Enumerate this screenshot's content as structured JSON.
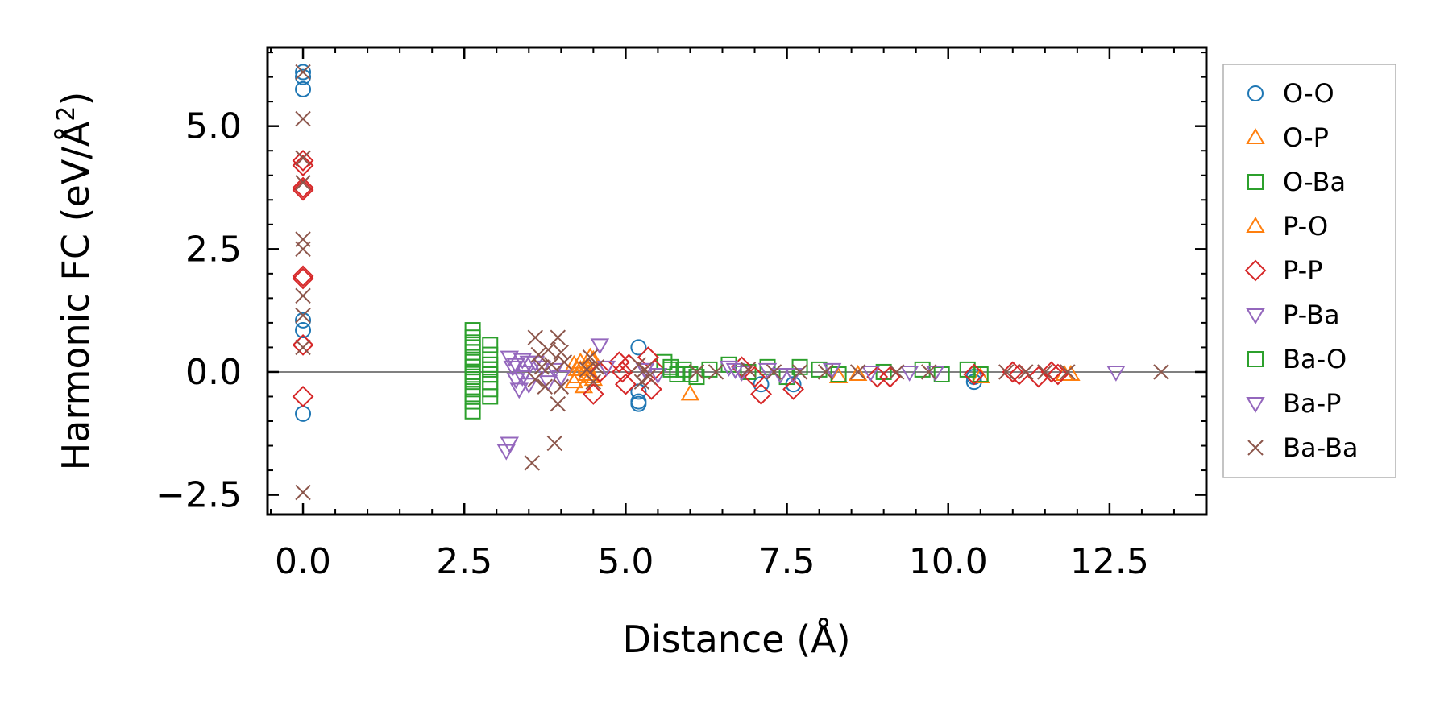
{
  "chart_data": {
    "type": "scatter",
    "xlabel": "Distance (Å)",
    "ylabel_main": "Harmonic FC (eV/Å",
    "ylabel_sup": "2",
    "ylabel_close": ")",
    "xlim": [
      -0.55,
      14.0
    ],
    "ylim": [
      -2.9,
      6.6
    ],
    "x_ticks": [
      0.0,
      2.5,
      5.0,
      7.5,
      10.0,
      12.5
    ],
    "x_tick_labels": [
      "0.0",
      "2.5",
      "5.0",
      "7.5",
      "10.0",
      "12.5"
    ],
    "y_ticks": [
      -2.5,
      0.0,
      2.5,
      5.0
    ],
    "y_tick_labels": [
      "−2.5",
      "0.0",
      "2.5",
      "5.0"
    ],
    "zero_line": 0.0,
    "legend_position": "right-outside",
    "series": [
      {
        "name": "O-O",
        "marker": "circle",
        "color": "#1f77b4",
        "x": [
          0,
          0,
          0,
          0,
          0,
          0,
          5.2,
          5.2,
          5.2,
          5.2,
          7.1,
          7.6,
          10.4,
          10.4
        ],
        "y": [
          6.1,
          6.0,
          5.75,
          1.05,
          0.85,
          -0.85,
          0.5,
          -0.6,
          -0.65,
          -0.4,
          -0.25,
          -0.25,
          -0.2,
          -0.1
        ]
      },
      {
        "name": "O-P",
        "marker": "triangle-up",
        "color": "#ff7f0e",
        "x": [
          4.2,
          4.25,
          4.3,
          4.35,
          4.4,
          4.45,
          4.5,
          4.2,
          4.3,
          4.4,
          4.5,
          6.0,
          8.3,
          8.6,
          10.5,
          11.8,
          11.9
        ],
        "y": [
          0.15,
          -0.1,
          0.2,
          -0.3,
          0.1,
          0.3,
          -0.15,
          -0.2,
          0.05,
          -0.05,
          0.25,
          -0.45,
          -0.1,
          -0.05,
          -0.1,
          -0.05,
          -0.05
        ]
      },
      {
        "name": "O-Ba",
        "marker": "square",
        "color": "#2ca02c",
        "x": [
          2.63,
          2.63,
          2.63,
          2.63,
          2.63,
          2.63,
          2.63,
          2.63,
          2.63,
          2.63,
          2.63,
          2.63,
          2.63,
          2.63,
          2.63,
          2.9,
          2.9,
          2.9,
          2.9,
          2.9,
          2.9,
          2.9,
          5.6,
          5.7,
          5.8,
          5.9,
          6.1,
          6.3,
          6.6,
          6.9,
          7.2,
          7.5,
          7.7,
          8.0,
          8.3,
          9.0,
          9.6,
          9.9,
          10.3,
          10.5
        ],
        "y": [
          0.85,
          0.7,
          0.6,
          0.5,
          0.4,
          0.3,
          0.2,
          0.1,
          0,
          -0.1,
          -0.2,
          -0.35,
          -0.45,
          -0.6,
          -0.8,
          0.55,
          0.35,
          0.15,
          -0.05,
          -0.2,
          -0.35,
          -0.5,
          0.2,
          0.1,
          -0.05,
          0.05,
          -0.1,
          0.05,
          0.15,
          0,
          0.1,
          -0.1,
          0.1,
          0.05,
          -0.05,
          0,
          0.05,
          -0.05,
          0.05,
          -0.05
        ]
      },
      {
        "name": "P-O",
        "marker": "triangle-up",
        "color": "#ff7f0e",
        "x": [
          4.25,
          4.45
        ],
        "y": [
          0.05,
          -0.1
        ]
      },
      {
        "name": "P-P",
        "marker": "diamond",
        "color": "#d62728",
        "x": [
          0,
          0,
          0,
          0,
          0,
          0,
          0,
          0,
          4.5,
          4.6,
          4.9,
          4.95,
          5.0,
          5.05,
          5.35,
          5.4,
          5.45,
          6.8,
          7.0,
          7.1,
          7.6,
          8.9,
          9.1,
          10.4,
          11.0,
          11.1,
          11.4,
          11.6,
          11.7
        ],
        "y": [
          4.3,
          4.2,
          3.75,
          3.7,
          1.95,
          1.9,
          0.55,
          -0.5,
          -0.45,
          0,
          0.2,
          0,
          -0.25,
          0.15,
          0.3,
          -0.35,
          0.05,
          0.1,
          -0.1,
          -0.45,
          -0.35,
          -0.1,
          -0.1,
          -0.05,
          0,
          -0.05,
          -0.1,
          0,
          -0.05
        ]
      },
      {
        "name": "P-Ba",
        "marker": "triangle-down",
        "color": "#9467bd",
        "x": [
          3.15,
          3.2,
          3.25,
          3.3,
          3.35,
          3.4,
          3.45,
          3.5,
          3.6,
          3.7,
          3.8,
          3.9,
          4.0,
          4.6,
          4.7,
          5.3,
          5.5,
          6.6,
          6.8,
          7.2,
          7.6,
          8.2,
          8.8,
          9.4,
          9.8,
          12.6
        ],
        "y": [
          -1.6,
          0.3,
          0.1,
          -0.15,
          -0.35,
          0.25,
          0,
          -0.25,
          0.2,
          0.1,
          -0.2,
          0.05,
          -0.1,
          0.55,
          0.1,
          0.05,
          -0.05,
          0.1,
          0,
          0.05,
          -0.05,
          0.05,
          0,
          0,
          0,
          0
        ]
      },
      {
        "name": "Ba-O",
        "marker": "square",
        "color": "#2ca02c",
        "x": [
          2.63,
          2.63,
          2.9,
          5.7,
          6.0
        ],
        "y": [
          0.25,
          -0.15,
          0.05,
          0.05,
          -0.05
        ]
      },
      {
        "name": "Ba-P",
        "marker": "triangle-down",
        "color": "#9467bd",
        "x": [
          3.2,
          3.3,
          3.4,
          3.5,
          5.3,
          6.7,
          7.4
        ],
        "y": [
          -1.45,
          0.15,
          -0.1,
          0.2,
          0.05,
          0.05,
          -0.05
        ]
      },
      {
        "name": "Ba-Ba",
        "marker": "x",
        "color": "#8c564b",
        "x": [
          0,
          0,
          0,
          0,
          0,
          0,
          0,
          0,
          0,
          0,
          3.55,
          3.6,
          3.6,
          3.65,
          3.7,
          3.75,
          3.8,
          3.85,
          3.9,
          3.95,
          3.95,
          4.0,
          4.0,
          4.05,
          4.4,
          4.45,
          4.5,
          4.55,
          5.2,
          5.25,
          5.3,
          5.35,
          6.1,
          6.4,
          6.9,
          7.3,
          7.7,
          8.1,
          8.6,
          9.2,
          9.7,
          10.9,
          11.2,
          11.5,
          11.85,
          13.3
        ],
        "y": [
          6.1,
          5.15,
          4.35,
          3.85,
          2.7,
          2.5,
          1.55,
          1.15,
          0.5,
          -2.45,
          -1.85,
          0.7,
          -0.15,
          0.35,
          0.1,
          -0.3,
          0.45,
          0.15,
          -1.45,
          0.7,
          -0.65,
          0.4,
          -0.3,
          0.2,
          0.05,
          0.3,
          -0.2,
          0.1,
          0.15,
          -0.2,
          0.05,
          -0.1,
          0,
          0,
          0.05,
          0,
          0,
          0,
          0,
          0,
          0,
          0,
          0,
          0,
          0,
          0
        ]
      }
    ]
  }
}
